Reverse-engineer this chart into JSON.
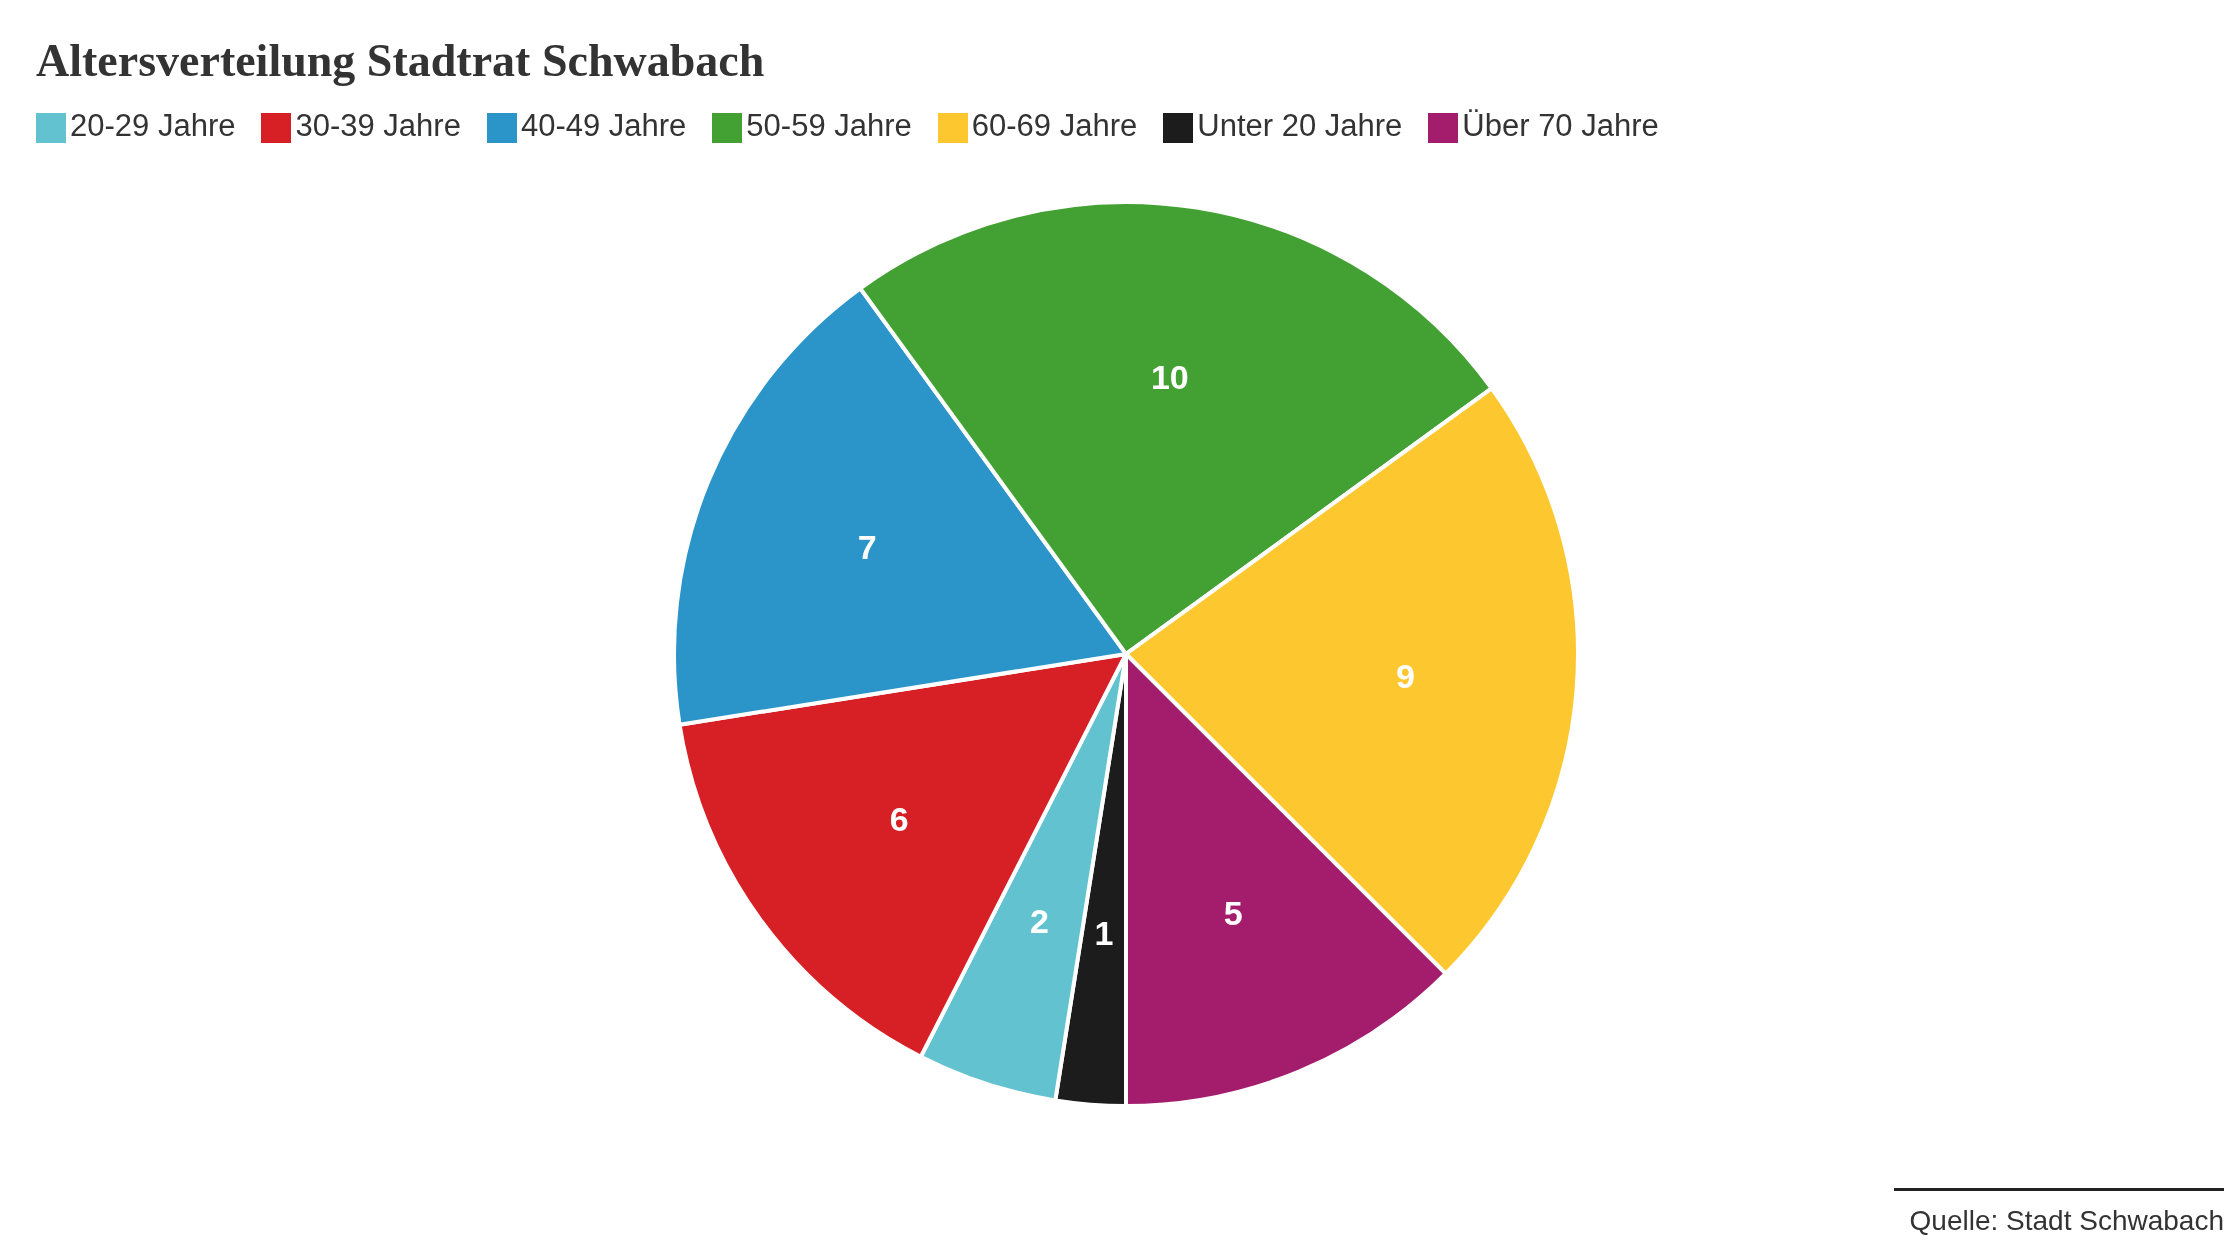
{
  "chart_data": {
    "type": "pie",
    "title": "Altersverteilung Stadtrat Schwabach",
    "categories": [
      "Unter 20 Jahre",
      "20-29 Jahre",
      "30-39 Jahre",
      "40-49 Jahre",
      "50-59 Jahre",
      "60-69 Jahre",
      "Über 70 Jahre"
    ],
    "values": [
      1,
      2,
      6,
      7,
      10,
      9,
      5
    ],
    "colors": [
      "#1c1c1c",
      "#62c2d0",
      "#d71f26",
      "#2b95c9",
      "#43a032",
      "#fdc82f",
      "#a41c6c"
    ],
    "data_labels": true,
    "legend": "top left",
    "annotations": [
      "Quelle: Stadt Schwabach"
    ]
  }
}
